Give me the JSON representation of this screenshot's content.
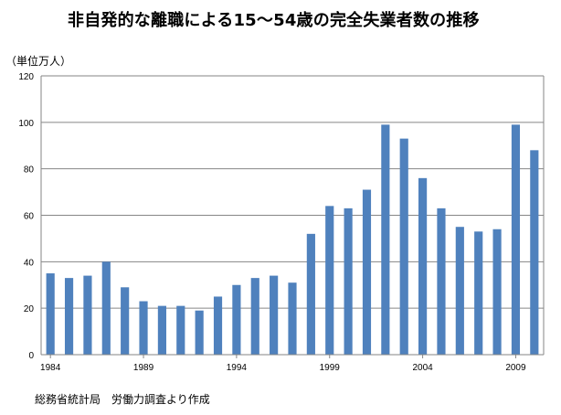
{
  "chart_data": {
    "type": "bar",
    "title": "非自発的な離職による15～54歳の完全失業者数の推移",
    "unit_label": "（単位万人）",
    "source_note": "総務省統計局　労働力調査より作成",
    "categories": [
      "1984",
      "1985",
      "1986",
      "1987",
      "1988",
      "1989",
      "1990",
      "1991",
      "1992",
      "1993",
      "1994",
      "1995",
      "1996",
      "1997",
      "1998",
      "1999",
      "2000",
      "2001",
      "2002",
      "2003",
      "2004",
      "2005",
      "2006",
      "2007",
      "2008",
      "2009",
      "2010"
    ],
    "values": [
      35,
      33,
      34,
      40,
      29,
      23,
      21,
      21,
      19,
      25,
      30,
      33,
      34,
      31,
      52,
      64,
      63,
      71,
      99,
      93,
      76,
      63,
      55,
      53,
      54,
      99,
      88
    ],
    "x_tick_labels": [
      "1984",
      "1989",
      "1994",
      "1999",
      "2004",
      "2009"
    ],
    "x_tick_years": [
      1984,
      1989,
      1994,
      1999,
      2004,
      2009
    ],
    "y_ticks": [
      0,
      20,
      40,
      60,
      80,
      100,
      120
    ],
    "ylim": [
      0,
      120
    ],
    "grid": true,
    "bar_color": "#4F81BD",
    "grid_color": "#868686"
  }
}
